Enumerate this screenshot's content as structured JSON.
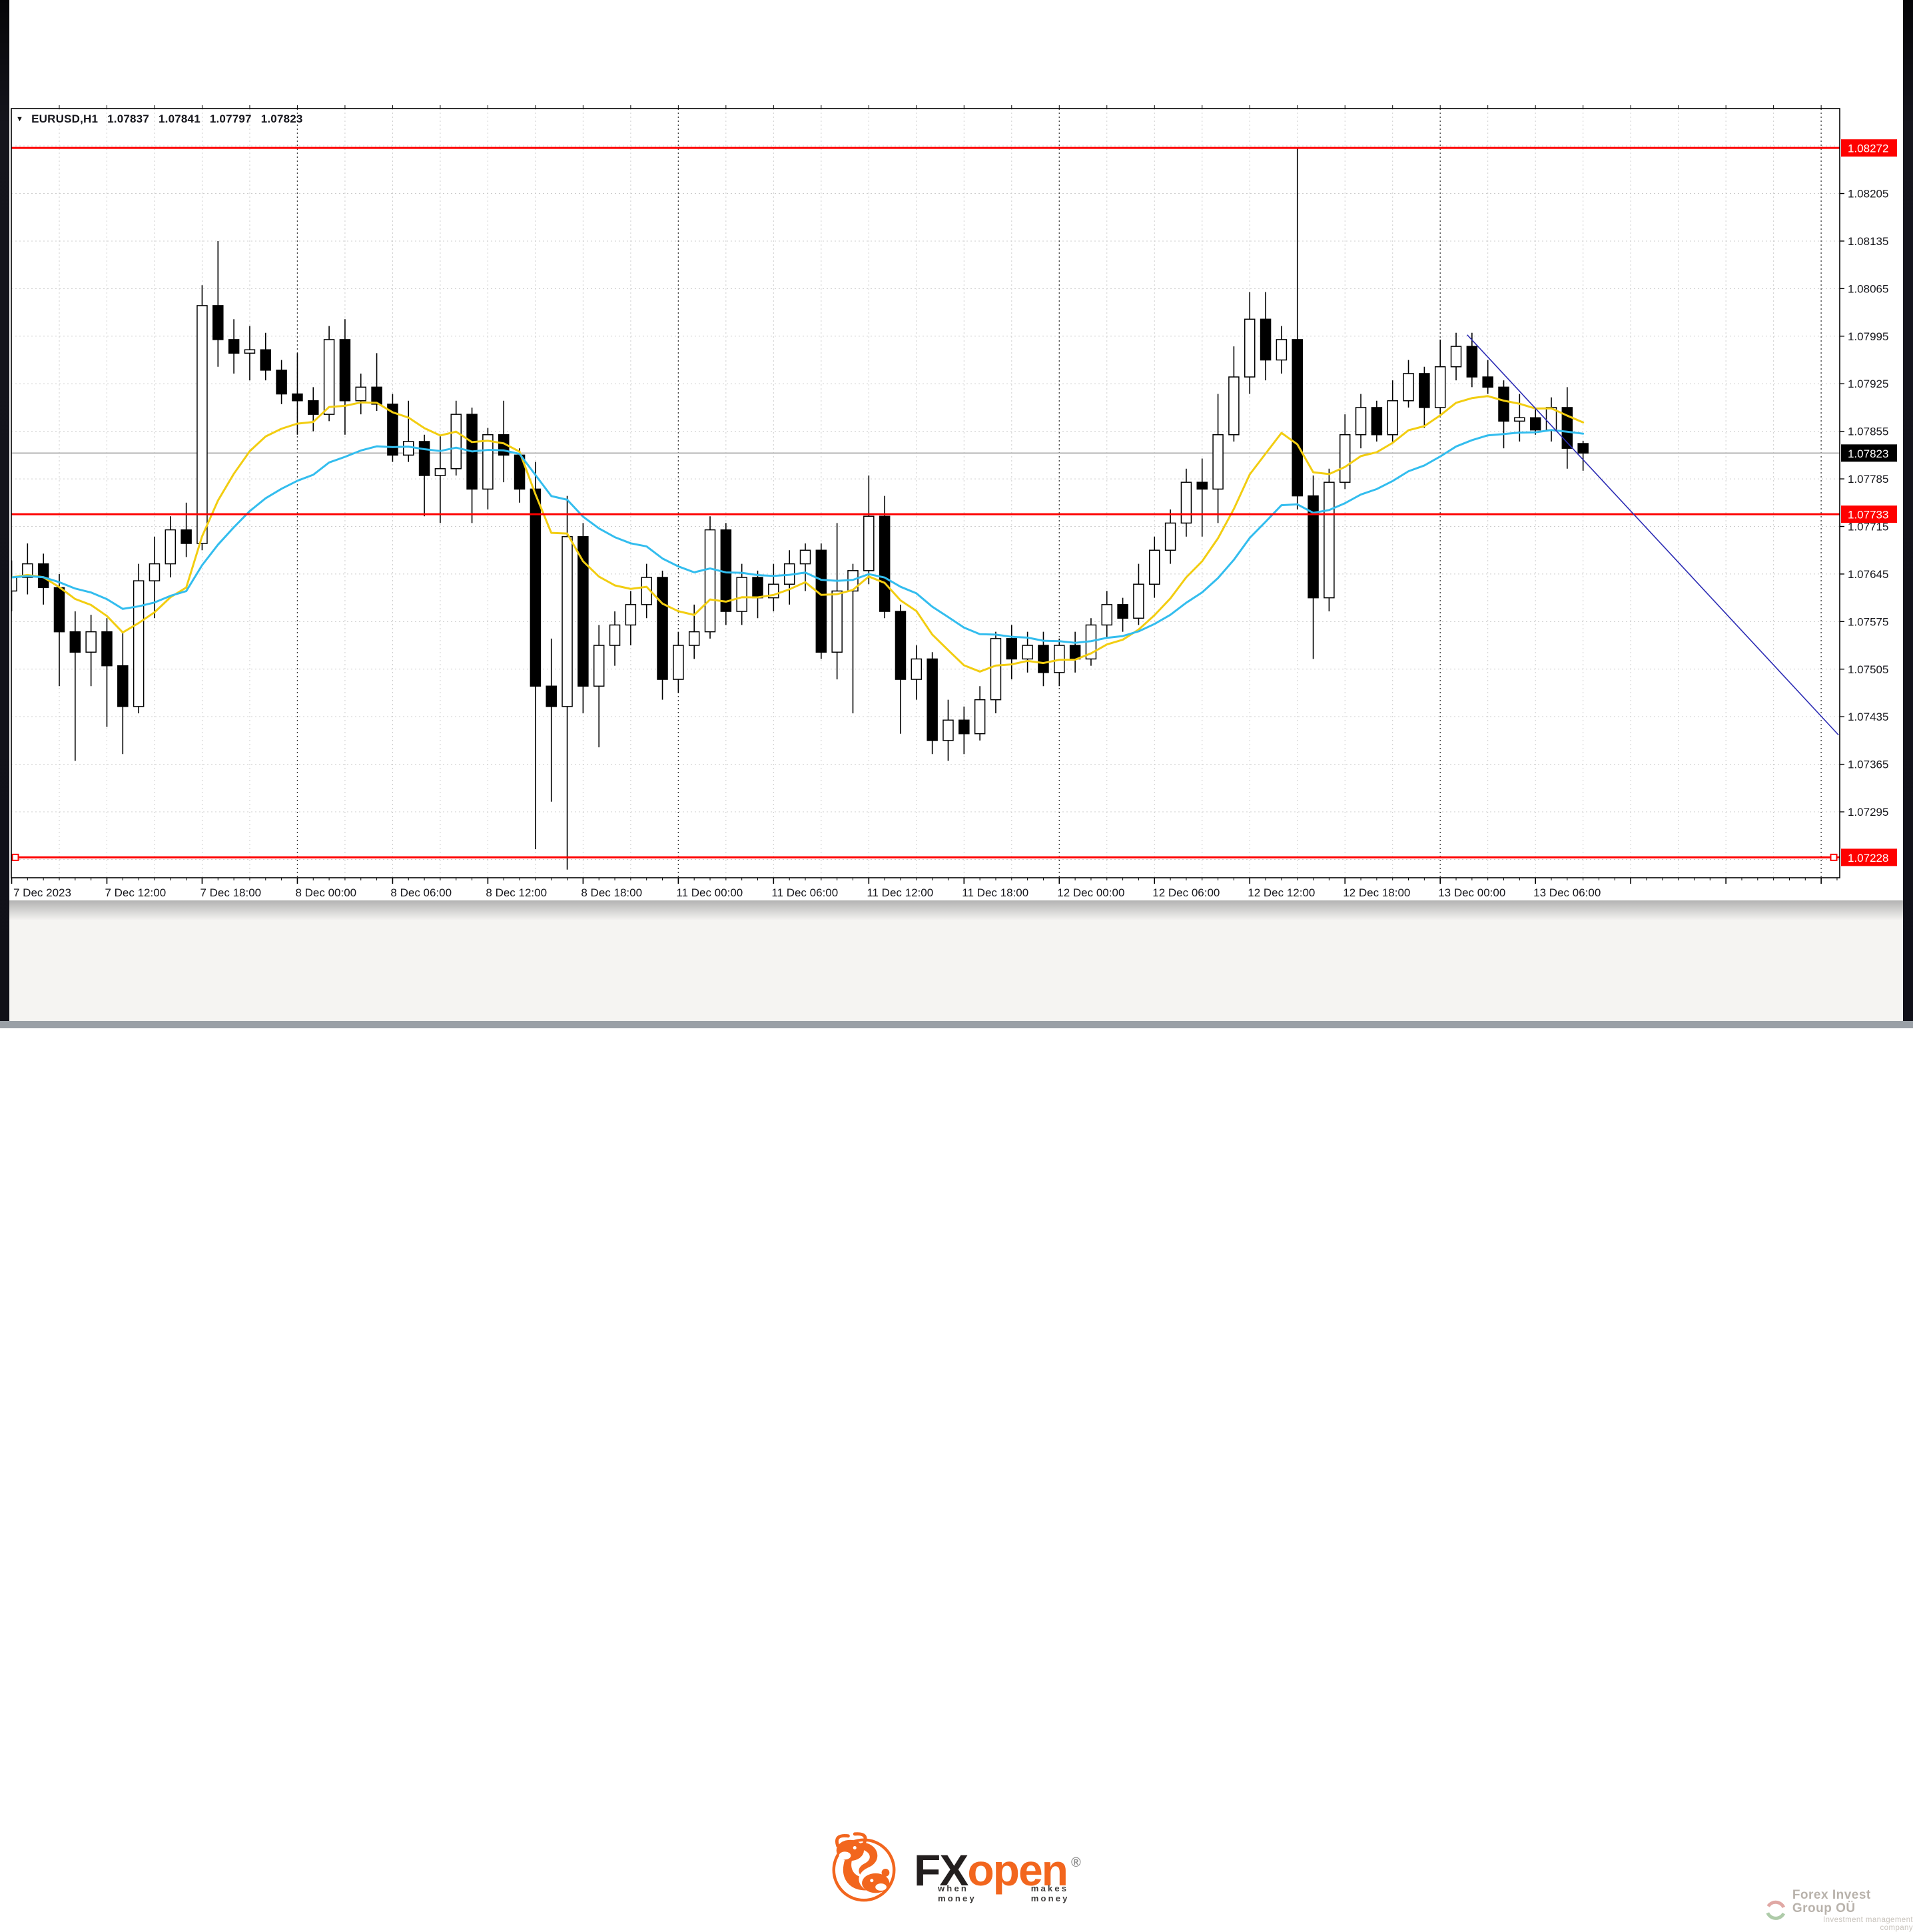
{
  "page": {
    "bg": "#ffffff",
    "edge_color": "#101018",
    "footer_strip_color": "#9aa0a6"
  },
  "title_row": {
    "dropdown_icon": "▼",
    "symbol": "EURUSD,H1",
    "open": "1.07837",
    "high": "1.07841",
    "low": "1.07797",
    "close": "1.07823"
  },
  "chart_data": {
    "type": "candlestick",
    "symbol": "EURUSD",
    "timeframe": "H1",
    "first_bar_time": "7 Dec 2023 06:00",
    "last_bar_time": "13 Dec 2023 09:00",
    "ylim": [
      1.07198,
      1.0833
    ],
    "y_ticks": [
      "1.08205",
      "1.08135",
      "1.08065",
      "1.07995",
      "1.07925",
      "1.07855",
      "1.07785",
      "1.07715",
      "1.07645",
      "1.07575",
      "1.07505",
      "1.07435",
      "1.07365",
      "1.07295"
    ],
    "grid_price_top": 1.08275,
    "grid_price_step": 0.0007,
    "grid_step_bars": 3,
    "x_labels": [
      {
        "text": "7 Dec 2023",
        "bar": 0
      },
      {
        "text": "7 Dec 12:00",
        "bar": 6
      },
      {
        "text": "7 Dec 18:00",
        "bar": 12
      },
      {
        "text": "8 Dec 00:00",
        "bar": 18
      },
      {
        "text": "8 Dec 06:00",
        "bar": 24
      },
      {
        "text": "8 Dec 12:00",
        "bar": 30
      },
      {
        "text": "8 Dec 18:00",
        "bar": 36
      },
      {
        "text": "11 Dec 00:00",
        "bar": 42
      },
      {
        "text": "11 Dec 06:00",
        "bar": 48
      },
      {
        "text": "11 Dec 12:00",
        "bar": 54
      },
      {
        "text": "11 Dec 18:00",
        "bar": 60
      },
      {
        "text": "12 Dec 00:00",
        "bar": 66
      },
      {
        "text": "12 Dec 06:00",
        "bar": 72
      },
      {
        "text": "12 Dec 12:00",
        "bar": 78
      },
      {
        "text": "12 Dec 18:00",
        "bar": 84
      },
      {
        "text": "13 Dec 00:00",
        "bar": 90
      },
      {
        "text": "13 Dec 06:00",
        "bar": 96
      }
    ],
    "day_separator_bars": [
      18,
      42,
      66,
      90,
      114
    ],
    "candles": [
      [
        1.0762,
        1.07665,
        1.0759,
        1.0764
      ],
      [
        1.0764,
        1.0769,
        1.07615,
        1.0766
      ],
      [
        1.0766,
        1.07675,
        1.076,
        1.07625
      ],
      [
        1.07625,
        1.07645,
        1.0748,
        1.0756
      ],
      [
        1.0756,
        1.0759,
        1.0737,
        1.0753
      ],
      [
        1.0753,
        1.07585,
        1.0748,
        1.0756
      ],
      [
        1.0756,
        1.0758,
        1.0742,
        1.0751
      ],
      [
        1.0751,
        1.0756,
        1.0738,
        1.0745
      ],
      [
        1.0745,
        1.0766,
        1.0744,
        1.07635
      ],
      [
        1.07635,
        1.077,
        1.0758,
        1.0766
      ],
      [
        1.0766,
        1.0773,
        1.0764,
        1.0771
      ],
      [
        1.0771,
        1.0775,
        1.0767,
        1.0769
      ],
      [
        1.0769,
        1.0807,
        1.0768,
        1.0804
      ],
      [
        1.0804,
        1.08135,
        1.0795,
        1.0799
      ],
      [
        1.0799,
        1.0802,
        1.0794,
        1.0797
      ],
      [
        1.0797,
        1.0801,
        1.0793,
        1.07975
      ],
      [
        1.07975,
        1.08,
        1.0793,
        1.07945
      ],
      [
        1.07945,
        1.0796,
        1.07895,
        1.0791
      ],
      [
        1.0791,
        1.0797,
        1.0785,
        1.079
      ],
      [
        1.079,
        1.0792,
        1.07855,
        1.0788
      ],
      [
        1.0788,
        1.0801,
        1.0787,
        1.0799
      ],
      [
        1.0799,
        1.0802,
        1.0785,
        1.079
      ],
      [
        1.079,
        1.0794,
        1.0788,
        1.0792
      ],
      [
        1.0792,
        1.0797,
        1.07885,
        1.07895
      ],
      [
        1.07895,
        1.0791,
        1.0781,
        1.0782
      ],
      [
        1.0782,
        1.079,
        1.0781,
        1.0784
      ],
      [
        1.0784,
        1.0785,
        1.0773,
        1.0779
      ],
      [
        1.0779,
        1.0785,
        1.0772,
        1.078
      ],
      [
        1.078,
        1.079,
        1.0779,
        1.0788
      ],
      [
        1.0788,
        1.0789,
        1.0772,
        1.0777
      ],
      [
        1.0777,
        1.0786,
        1.0774,
        1.0785
      ],
      [
        1.0785,
        1.079,
        1.0778,
        1.0782
      ],
      [
        1.0782,
        1.0783,
        1.0775,
        1.0777
      ],
      [
        1.0777,
        1.0781,
        1.0724,
        1.0748
      ],
      [
        1.0748,
        1.0755,
        1.0731,
        1.0745
      ],
      [
        1.0745,
        1.0776,
        1.0721,
        1.077
      ],
      [
        1.077,
        1.0772,
        1.0744,
        1.0748
      ],
      [
        1.0748,
        1.0757,
        1.0739,
        1.0754
      ],
      [
        1.0754,
        1.0759,
        1.0751,
        1.0757
      ],
      [
        1.0757,
        1.0762,
        1.0754,
        1.076
      ],
      [
        1.076,
        1.0766,
        1.0758,
        1.0764
      ],
      [
        1.0764,
        1.0765,
        1.0746,
        1.0749
      ],
      [
        1.0749,
        1.0756,
        1.0747,
        1.0754
      ],
      [
        1.0754,
        1.076,
        1.0752,
        1.0756
      ],
      [
        1.0756,
        1.0773,
        1.0755,
        1.0771
      ],
      [
        1.0771,
        1.0772,
        1.0757,
        1.0759
      ],
      [
        1.0759,
        1.0766,
        1.0757,
        1.0764
      ],
      [
        1.0764,
        1.0765,
        1.0758,
        1.0761
      ],
      [
        1.0761,
        1.0766,
        1.0759,
        1.0763
      ],
      [
        1.0763,
        1.0768,
        1.076,
        1.0766
      ],
      [
        1.0766,
        1.0769,
        1.0762,
        1.0768
      ],
      [
        1.0768,
        1.0769,
        1.0752,
        1.0753
      ],
      [
        1.0753,
        1.0772,
        1.0749,
        1.0762
      ],
      [
        1.0762,
        1.0766,
        1.0744,
        1.0765
      ],
      [
        1.0765,
        1.0779,
        1.0763,
        1.0773
      ],
      [
        1.0773,
        1.0776,
        1.0758,
        1.0759
      ],
      [
        1.0759,
        1.076,
        1.0741,
        1.0749
      ],
      [
        1.0749,
        1.0754,
        1.0746,
        1.0752
      ],
      [
        1.0752,
        1.0753,
        1.0738,
        1.074
      ],
      [
        1.074,
        1.0746,
        1.0737,
        1.0743
      ],
      [
        1.0743,
        1.0745,
        1.0738,
        1.0741
      ],
      [
        1.0741,
        1.0748,
        1.074,
        1.0746
      ],
      [
        1.0746,
        1.0756,
        1.0744,
        1.0755
      ],
      [
        1.0755,
        1.0757,
        1.0749,
        1.0752
      ],
      [
        1.0752,
        1.0756,
        1.075,
        1.0754
      ],
      [
        1.0754,
        1.0756,
        1.0748,
        1.075
      ],
      [
        1.075,
        1.0755,
        1.0748,
        1.0754
      ],
      [
        1.0754,
        1.0756,
        1.075,
        1.0752
      ],
      [
        1.0752,
        1.0758,
        1.0751,
        1.0757
      ],
      [
        1.0757,
        1.0762,
        1.0755,
        1.076
      ],
      [
        1.076,
        1.0761,
        1.0756,
        1.0758
      ],
      [
        1.0758,
        1.0766,
        1.0757,
        1.0763
      ],
      [
        1.0763,
        1.077,
        1.0761,
        1.0768
      ],
      [
        1.0768,
        1.0774,
        1.0766,
        1.0772
      ],
      [
        1.0772,
        1.078,
        1.077,
        1.0778
      ],
      [
        1.0778,
        1.07815,
        1.077,
        1.0777
      ],
      [
        1.0777,
        1.0791,
        1.0772,
        1.0785
      ],
      [
        1.0785,
        1.0798,
        1.0784,
        1.07935
      ],
      [
        1.07935,
        1.0806,
        1.0791,
        1.0802
      ],
      [
        1.0802,
        1.0806,
        1.0793,
        1.0796
      ],
      [
        1.0796,
        1.0801,
        1.0794,
        1.0799
      ],
      [
        1.0799,
        1.08272,
        1.0774,
        1.0776
      ],
      [
        1.0776,
        1.0779,
        1.0752,
        1.0761
      ],
      [
        1.0761,
        1.078,
        1.0759,
        1.0778
      ],
      [
        1.0778,
        1.0788,
        1.0777,
        1.0785
      ],
      [
        1.0785,
        1.0791,
        1.0783,
        1.0789
      ],
      [
        1.0789,
        1.079,
        1.0784,
        1.0785
      ],
      [
        1.0785,
        1.0793,
        1.0784,
        1.079
      ],
      [
        1.079,
        1.0796,
        1.0789,
        1.0794
      ],
      [
        1.0794,
        1.0795,
        1.0786,
        1.0789
      ],
      [
        1.0789,
        1.0799,
        1.0788,
        1.0795
      ],
      [
        1.0795,
        1.08,
        1.0793,
        1.0798
      ],
      [
        1.0798,
        1.08,
        1.0792,
        1.07935
      ],
      [
        1.07935,
        1.0796,
        1.0791,
        1.0792
      ],
      [
        1.0792,
        1.0793,
        1.0783,
        1.0787
      ],
      [
        1.0787,
        1.0791,
        1.0784,
        1.07875
      ],
      [
        1.07875,
        1.0789,
        1.0785,
        1.07857
      ],
      [
        1.07857,
        1.07905,
        1.0784,
        1.0789
      ],
      [
        1.0789,
        1.0792,
        1.078,
        1.0783
      ],
      [
        1.07837,
        1.07841,
        1.07797,
        1.07823
      ]
    ],
    "series": [
      {
        "name": "ma-fast",
        "period": 10,
        "color": "#f2cd11"
      },
      {
        "name": "ma-slow",
        "period": 21,
        "color": "#33bdee"
      }
    ],
    "horizontal_lines": [
      {
        "price": 1.08272,
        "label": "1.08272",
        "color": "#fe0100",
        "width": 3,
        "handles": false
      },
      {
        "price": 1.07733,
        "label": "1.07733",
        "color": "#fe0100",
        "width": 3,
        "handles": false
      },
      {
        "price": 1.07228,
        "label": "1.07228",
        "color": "#fe0100",
        "width": 3,
        "handles": true
      }
    ],
    "bid_line": {
      "price": 1.07823,
      "label": "1.07823",
      "line_color": "#a9a9a9",
      "tag_bg": "#000000",
      "tag_text": "#ffffff"
    },
    "trendline": {
      "color": "#2b2bb4",
      "width": 1.6,
      "bar1": 91.7,
      "price1": 1.07997,
      "bar2": 115.1,
      "price2": 1.07408
    },
    "candle_colors": {
      "bull_fill": "#ffffff",
      "bear_fill": "#000000",
      "outline": "#000000"
    },
    "grid_color": "#cdcdcd",
    "separator_color": "#3a3a3a",
    "axis_text_color": "#17171c",
    "frame_color": "#000000",
    "legend_position": "none",
    "grid": true
  },
  "footer": {
    "logo": {
      "fx": "FX",
      "open": "open",
      "reg": "®",
      "tagline_left": "when money",
      "tagline_right": "makes money",
      "orange": "#f2661e",
      "dark": "#231f1f"
    },
    "watermark": {
      "name": "Forex Invest Group OÜ",
      "subtitle": "Investment management company"
    }
  }
}
